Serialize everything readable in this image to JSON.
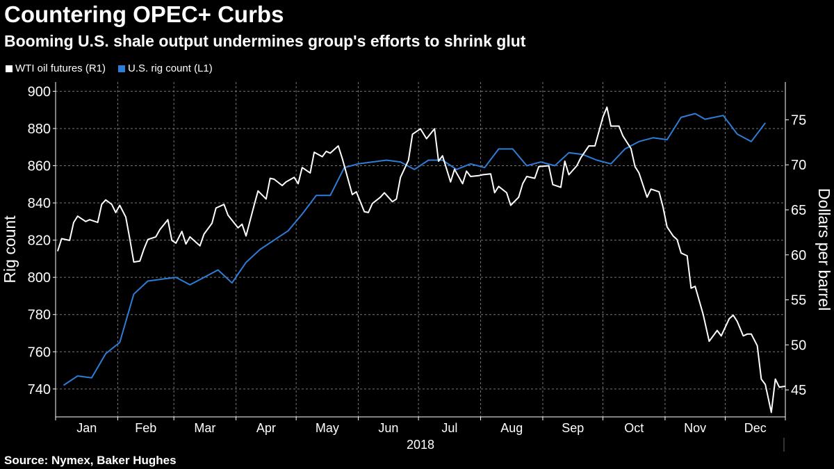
{
  "header": {
    "title": "Countering OPEC+ Curbs",
    "subtitle": "Booming U.S. shale output undermines group's efforts to shrink glut"
  },
  "legend": {
    "items": [
      {
        "label": "WTI oil futures (R1)",
        "color": "#ffffff"
      },
      {
        "label": "U.S. rig count (L1)",
        "color": "#2e7dd7"
      }
    ]
  },
  "footer": {
    "source": "Source: Nymex, Baker Hughes"
  },
  "chart_data": {
    "type": "line",
    "title": "Countering OPEC+ Curbs",
    "subtitle": "Booming U.S. shale output undermines group's efforts to shrink glut",
    "grid": true,
    "legend_position": "top-left",
    "x_axis": {
      "year_label": "2018",
      "months": [
        "Jan",
        "Feb",
        "Mar",
        "Apr",
        "May",
        "Jun",
        "Jul",
        "Aug",
        "Sep",
        "Oct",
        "Nov",
        "Dec"
      ],
      "range": [
        "2018-01-01",
        "2018-12-31"
      ]
    },
    "y_left": {
      "label": "Rig count",
      "ylim": [
        725,
        905
      ],
      "ticks": [
        740,
        760,
        780,
        800,
        820,
        840,
        860,
        880,
        900
      ]
    },
    "y_right": {
      "label": "Dollars per barrel",
      "ylim": [
        42,
        79.2
      ],
      "ticks": [
        45,
        50,
        55,
        60,
        65,
        70,
        75
      ]
    },
    "series": [
      {
        "name": "U.S. rig count (L1)",
        "axis": "left",
        "color": "#2e7dd7",
        "points": [
          [
            "2018-01-05",
            742
          ],
          [
            "2018-01-12",
            747
          ],
          [
            "2018-01-19",
            746
          ],
          [
            "2018-01-26",
            759
          ],
          [
            "2018-02-02",
            765
          ],
          [
            "2018-02-09",
            791
          ],
          [
            "2018-02-16",
            798
          ],
          [
            "2018-02-23",
            799
          ],
          [
            "2018-03-02",
            800
          ],
          [
            "2018-03-09",
            796
          ],
          [
            "2018-03-16",
            800
          ],
          [
            "2018-03-23",
            804
          ],
          [
            "2018-03-30",
            797
          ],
          [
            "2018-04-06",
            808
          ],
          [
            "2018-04-13",
            815
          ],
          [
            "2018-04-20",
            820
          ],
          [
            "2018-04-27",
            825
          ],
          [
            "2018-05-04",
            834
          ],
          [
            "2018-05-11",
            844
          ],
          [
            "2018-05-18",
            844
          ],
          [
            "2018-05-25",
            859
          ],
          [
            "2018-06-01",
            861
          ],
          [
            "2018-06-08",
            862
          ],
          [
            "2018-06-15",
            863
          ],
          [
            "2018-06-22",
            862
          ],
          [
            "2018-06-29",
            858
          ],
          [
            "2018-07-06",
            863
          ],
          [
            "2018-07-13",
            863
          ],
          [
            "2018-07-20",
            858
          ],
          [
            "2018-07-27",
            861
          ],
          [
            "2018-08-03",
            859
          ],
          [
            "2018-08-10",
            869
          ],
          [
            "2018-08-17",
            869
          ],
          [
            "2018-08-24",
            860
          ],
          [
            "2018-08-31",
            862
          ],
          [
            "2018-09-07",
            860
          ],
          [
            "2018-09-14",
            867
          ],
          [
            "2018-09-21",
            866
          ],
          [
            "2018-09-28",
            863
          ],
          [
            "2018-10-05",
            861
          ],
          [
            "2018-10-12",
            869
          ],
          [
            "2018-10-19",
            873
          ],
          [
            "2018-10-26",
            875
          ],
          [
            "2018-11-02",
            874
          ],
          [
            "2018-11-09",
            886
          ],
          [
            "2018-11-16",
            888
          ],
          [
            "2018-11-21",
            885
          ],
          [
            "2018-11-30",
            887
          ],
          [
            "2018-12-07",
            877
          ],
          [
            "2018-12-14",
            873
          ],
          [
            "2018-12-21",
            883
          ]
        ]
      },
      {
        "name": "WTI oil futures (R1)",
        "axis": "right",
        "color": "#ffffff",
        "points": [
          [
            "2018-01-02",
            60.4
          ],
          [
            "2018-01-04",
            61.8
          ],
          [
            "2018-01-08",
            61.6
          ],
          [
            "2018-01-10",
            63.6
          ],
          [
            "2018-01-12",
            64.3
          ],
          [
            "2018-01-16",
            63.7
          ],
          [
            "2018-01-18",
            63.9
          ],
          [
            "2018-01-22",
            63.6
          ],
          [
            "2018-01-24",
            65.6
          ],
          [
            "2018-01-26",
            66.1
          ],
          [
            "2018-01-29",
            65.6
          ],
          [
            "2018-01-31",
            64.7
          ],
          [
            "2018-02-02",
            65.5
          ],
          [
            "2018-02-05",
            64.2
          ],
          [
            "2018-02-07",
            61.8
          ],
          [
            "2018-02-09",
            59.2
          ],
          [
            "2018-02-12",
            59.3
          ],
          [
            "2018-02-14",
            60.6
          ],
          [
            "2018-02-16",
            61.7
          ],
          [
            "2018-02-20",
            62.0
          ],
          [
            "2018-02-22",
            62.8
          ],
          [
            "2018-02-26",
            63.9
          ],
          [
            "2018-02-28",
            61.6
          ],
          [
            "2018-03-02",
            61.3
          ],
          [
            "2018-03-05",
            62.6
          ],
          [
            "2018-03-07",
            61.2
          ],
          [
            "2018-03-09",
            62.0
          ],
          [
            "2018-03-12",
            61.4
          ],
          [
            "2018-03-14",
            61.0
          ],
          [
            "2018-03-16",
            62.3
          ],
          [
            "2018-03-20",
            63.5
          ],
          [
            "2018-03-22",
            65.2
          ],
          [
            "2018-03-26",
            65.6
          ],
          [
            "2018-03-28",
            64.4
          ],
          [
            "2018-04-02",
            63.0
          ],
          [
            "2018-04-04",
            63.4
          ],
          [
            "2018-04-06",
            62.1
          ],
          [
            "2018-04-10",
            65.5
          ],
          [
            "2018-04-12",
            67.1
          ],
          [
            "2018-04-16",
            66.2
          ],
          [
            "2018-04-18",
            68.5
          ],
          [
            "2018-04-20",
            68.4
          ],
          [
            "2018-04-24",
            67.7
          ],
          [
            "2018-04-26",
            68.1
          ],
          [
            "2018-04-30",
            68.6
          ],
          [
            "2018-05-02",
            67.9
          ],
          [
            "2018-05-04",
            69.7
          ],
          [
            "2018-05-08",
            69.1
          ],
          [
            "2018-05-10",
            71.4
          ],
          [
            "2018-05-14",
            70.9
          ],
          [
            "2018-05-16",
            71.5
          ],
          [
            "2018-05-18",
            71.3
          ],
          [
            "2018-05-22",
            72.1
          ],
          [
            "2018-05-24",
            70.7
          ],
          [
            "2018-05-29",
            66.7
          ],
          [
            "2018-05-31",
            67.0
          ],
          [
            "2018-06-04",
            64.8
          ],
          [
            "2018-06-06",
            64.7
          ],
          [
            "2018-06-08",
            65.7
          ],
          [
            "2018-06-12",
            66.4
          ],
          [
            "2018-06-14",
            66.9
          ],
          [
            "2018-06-18",
            65.9
          ],
          [
            "2018-06-20",
            66.2
          ],
          [
            "2018-06-22",
            68.6
          ],
          [
            "2018-06-26",
            70.5
          ],
          [
            "2018-06-28",
            73.4
          ],
          [
            "2018-07-02",
            74.0
          ],
          [
            "2018-07-05",
            72.9
          ],
          [
            "2018-07-09",
            74.0
          ],
          [
            "2018-07-11",
            70.4
          ],
          [
            "2018-07-13",
            71.0
          ],
          [
            "2018-07-17",
            68.1
          ],
          [
            "2018-07-19",
            69.5
          ],
          [
            "2018-07-23",
            67.9
          ],
          [
            "2018-07-25",
            69.3
          ],
          [
            "2018-07-27",
            68.7
          ],
          [
            "2018-07-31",
            68.8
          ],
          [
            "2018-08-02",
            68.9
          ],
          [
            "2018-08-06",
            69.0
          ],
          [
            "2018-08-08",
            66.9
          ],
          [
            "2018-08-10",
            67.6
          ],
          [
            "2018-08-14",
            66.9
          ],
          [
            "2018-08-16",
            65.5
          ],
          [
            "2018-08-20",
            66.4
          ],
          [
            "2018-08-22",
            67.9
          ],
          [
            "2018-08-24",
            68.7
          ],
          [
            "2018-08-28",
            68.5
          ],
          [
            "2018-08-30",
            69.8
          ],
          [
            "2018-09-04",
            69.9
          ],
          [
            "2018-09-06",
            67.8
          ],
          [
            "2018-09-10",
            67.5
          ],
          [
            "2018-09-12",
            70.4
          ],
          [
            "2018-09-14",
            68.9
          ],
          [
            "2018-09-18",
            69.9
          ],
          [
            "2018-09-20",
            70.8
          ],
          [
            "2018-09-24",
            72.1
          ],
          [
            "2018-09-27",
            72.1
          ],
          [
            "2018-10-01",
            75.3
          ],
          [
            "2018-10-03",
            76.4
          ],
          [
            "2018-10-05",
            74.3
          ],
          [
            "2018-10-09",
            74.3
          ],
          [
            "2018-10-11",
            73.2
          ],
          [
            "2018-10-15",
            71.8
          ],
          [
            "2018-10-17",
            69.8
          ],
          [
            "2018-10-19",
            69.1
          ],
          [
            "2018-10-23",
            66.4
          ],
          [
            "2018-10-25",
            67.3
          ],
          [
            "2018-10-29",
            67.0
          ],
          [
            "2018-10-31",
            65.3
          ],
          [
            "2018-11-02",
            63.1
          ],
          [
            "2018-11-05",
            62.1
          ],
          [
            "2018-11-07",
            61.7
          ],
          [
            "2018-11-09",
            60.2
          ],
          [
            "2018-11-12",
            59.9
          ],
          [
            "2018-11-14",
            56.3
          ],
          [
            "2018-11-16",
            56.5
          ],
          [
            "2018-11-20",
            53.4
          ],
          [
            "2018-11-23",
            50.4
          ],
          [
            "2018-11-27",
            51.6
          ],
          [
            "2018-11-29",
            51.0
          ],
          [
            "2018-12-03",
            52.9
          ],
          [
            "2018-12-05",
            53.3
          ],
          [
            "2018-12-07",
            52.6
          ],
          [
            "2018-12-10",
            51.0
          ],
          [
            "2018-12-12",
            51.2
          ],
          [
            "2018-12-14",
            51.2
          ],
          [
            "2018-12-17",
            49.9
          ],
          [
            "2018-12-19",
            46.2
          ],
          [
            "2018-12-21",
            45.6
          ],
          [
            "2018-12-24",
            42.5
          ],
          [
            "2018-12-26",
            46.2
          ],
          [
            "2018-12-28",
            45.3
          ],
          [
            "2018-12-31",
            45.4
          ]
        ]
      }
    ]
  }
}
